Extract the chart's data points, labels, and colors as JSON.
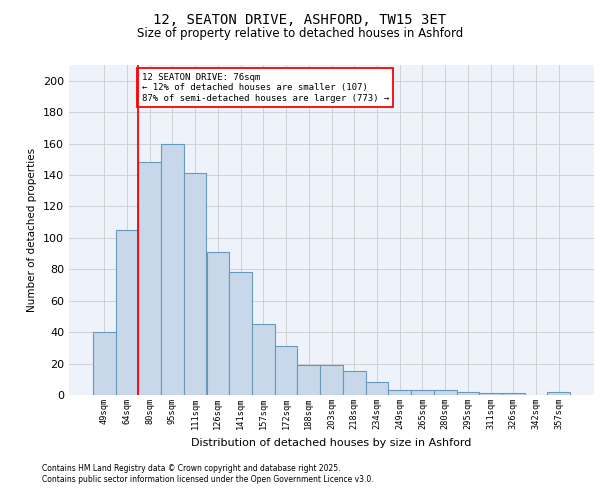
{
  "title_line1": "12, SEATON DRIVE, ASHFORD, TW15 3ET",
  "title_line2": "Size of property relative to detached houses in Ashford",
  "xlabel": "Distribution of detached houses by size in Ashford",
  "ylabel": "Number of detached properties",
  "bar_labels": [
    "49sqm",
    "64sqm",
    "80sqm",
    "95sqm",
    "111sqm",
    "126sqm",
    "141sqm",
    "157sqm",
    "172sqm",
    "188sqm",
    "203sqm",
    "218sqm",
    "234sqm",
    "249sqm",
    "265sqm",
    "280sqm",
    "295sqm",
    "311sqm",
    "326sqm",
    "342sqm",
    "357sqm"
  ],
  "bar_values": [
    40,
    105,
    148,
    160,
    141,
    91,
    78,
    45,
    31,
    19,
    19,
    15,
    8,
    3,
    3,
    3,
    2,
    1,
    1,
    0,
    2
  ],
  "bar_color": "#c8d8ea",
  "bar_edge_color": "#6699bb",
  "vline_x_index": 1.5,
  "vline_color": "red",
  "annotation_text": "12 SEATON DRIVE: 76sqm\n← 12% of detached houses are smaller (107)\n87% of semi-detached houses are larger (773) →",
  "annotation_box_color": "white",
  "annotation_box_edge_color": "red",
  "grid_color": "#cccccc",
  "background_color": "#eef2fa",
  "ylim_max": 210,
  "yticks": [
    0,
    20,
    40,
    60,
    80,
    100,
    120,
    140,
    160,
    180,
    200
  ],
  "footnote1": "Contains HM Land Registry data © Crown copyright and database right 2025.",
  "footnote2": "Contains public sector information licensed under the Open Government Licence v3.0."
}
